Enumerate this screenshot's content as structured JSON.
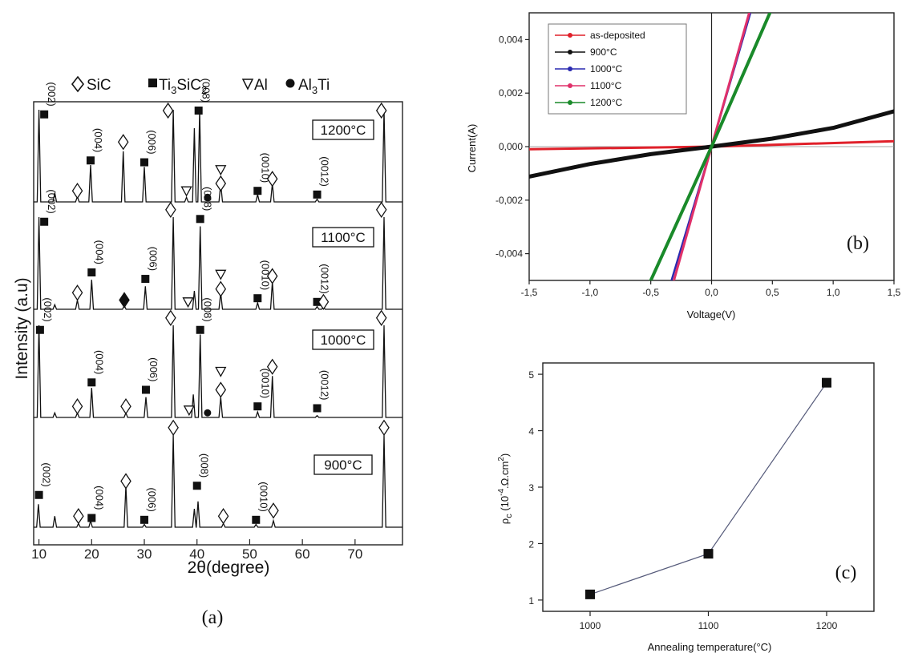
{
  "chart_data": [
    {
      "panel": "(a)",
      "type": "line",
      "xlabel": "2θ(degree)",
      "ylabel": "Intensity (a.u)",
      "xlim": [
        9,
        79
      ],
      "x_ticks": [
        10,
        20,
        30,
        40,
        50,
        60,
        70
      ],
      "legend": [
        {
          "symbol": "diamond-open",
          "label": "SiC"
        },
        {
          "symbol": "square-filled",
          "label": "Ti3SiC2"
        },
        {
          "symbol": "triangle-down-open",
          "label": "Al"
        },
        {
          "symbol": "circle-filled",
          "label": "Al3Ti"
        }
      ],
      "series": [
        {
          "name": "900°C",
          "peaks": [
            [
              9.9,
              0.25
            ],
            [
              13,
              0.12
            ],
            [
              17.5,
              0.04
            ],
            [
              19.8,
              0.07
            ],
            [
              26.5,
              0.45
            ],
            [
              30,
              0.03
            ],
            [
              35.5,
              1.0
            ],
            [
              39.5,
              0.2
            ],
            [
              40.2,
              0.28
            ],
            [
              45,
              0.04
            ],
            [
              51.2,
              0.03
            ],
            [
              54.5,
              0.07
            ],
            [
              75.5,
              1.0
            ]
          ],
          "markers": [
            {
              "x": 10,
              "sym": "square",
              "h": 0.35,
              "label": "(002)"
            },
            {
              "x": 17.5,
              "sym": "diamond",
              "h": 0.12
            },
            {
              "x": 20,
              "sym": "square",
              "h": 0.1,
              "label": "(004)"
            },
            {
              "x": 26.5,
              "sym": "diamond",
              "h": 0.5
            },
            {
              "x": 30,
              "sym": "square",
              "h": 0.08,
              "label": "(006)"
            },
            {
              "x": 35.5,
              "sym": "diamond",
              "h": 1.08
            },
            {
              "x": 40,
              "sym": "square",
              "h": 0.45,
              "label": "(008)"
            },
            {
              "x": 45,
              "sym": "diamond",
              "h": 0.12
            },
            {
              "x": 51.2,
              "sym": "square",
              "h": 0.08,
              "label": "(0010)"
            },
            {
              "x": 54.5,
              "sym": "diamond",
              "h": 0.18
            },
            {
              "x": 75.5,
              "sym": "diamond",
              "h": 1.08
            }
          ]
        },
        {
          "name": "1000°C",
          "peaks": [
            [
              10,
              1.0
            ],
            [
              13,
              0.05
            ],
            [
              17.3,
              0.05
            ],
            [
              20,
              0.32
            ],
            [
              26.5,
              0.05
            ],
            [
              30.3,
              0.22
            ],
            [
              35.5,
              1.0
            ],
            [
              39.3,
              0.25
            ],
            [
              40.6,
              0.9
            ],
            [
              44.5,
              0.22
            ],
            [
              51.5,
              0.06
            ],
            [
              54.3,
              0.45
            ],
            [
              62.8,
              0.02
            ],
            [
              75.5,
              1.0
            ]
          ],
          "markers": [
            {
              "x": 10.2,
              "sym": "square",
              "h": 0.95,
              "label": "(002)"
            },
            {
              "x": 17.3,
              "sym": "diamond",
              "h": 0.12
            },
            {
              "x": 20,
              "sym": "square",
              "h": 0.38,
              "label": "(004)"
            },
            {
              "x": 26.5,
              "sym": "diamond",
              "h": 0.12
            },
            {
              "x": 30.3,
              "sym": "square",
              "h": 0.3,
              "label": "(006)"
            },
            {
              "x": 35,
              "sym": "diamond",
              "h": 1.08
            },
            {
              "x": 38.5,
              "sym": "triangle",
              "h": 0.08
            },
            {
              "x": 40.6,
              "sym": "square",
              "h": 0.95,
              "label": "(008)"
            },
            {
              "x": 42,
              "sym": "circle",
              "h": 0.05
            },
            {
              "x": 44.5,
              "sym": "triangle",
              "h": 0.5
            },
            {
              "x": 44.5,
              "sym": "diamond",
              "h": 0.3
            },
            {
              "x": 51.5,
              "sym": "square",
              "h": 0.12,
              "label": "(0010)"
            },
            {
              "x": 54.3,
              "sym": "diamond",
              "h": 0.55
            },
            {
              "x": 62.8,
              "sym": "square",
              "h": 0.1,
              "label": "(0012)"
            },
            {
              "x": 75,
              "sym": "diamond",
              "h": 1.08
            }
          ]
        },
        {
          "name": "1100°C",
          "peaks": [
            [
              10,
              1.0
            ],
            [
              13,
              0.05
            ],
            [
              17.3,
              0.1
            ],
            [
              20,
              0.32
            ],
            [
              26.2,
              0.04
            ],
            [
              30.2,
              0.25
            ],
            [
              35.5,
              1.0
            ],
            [
              39.5,
              0.2
            ],
            [
              40.6,
              0.9
            ],
            [
              44.5,
              0.18
            ],
            [
              51.5,
              0.07
            ],
            [
              54.3,
              0.3
            ],
            [
              62.8,
              0.03
            ],
            [
              64,
              0.02
            ],
            [
              75.5,
              1.0
            ]
          ],
          "markers": [
            {
              "x": 11,
              "sym": "square",
              "h": 0.95,
              "label": "(002)"
            },
            {
              "x": 17.3,
              "sym": "diamond",
              "h": 0.18
            },
            {
              "x": 20,
              "sym": "square",
              "h": 0.4,
              "label": "(004)"
            },
            {
              "x": 26.2,
              "sym": "diamond-filled",
              "h": 0.1
            },
            {
              "x": 30.2,
              "sym": "square",
              "h": 0.33,
              "label": "(006)"
            },
            {
              "x": 35,
              "sym": "diamond",
              "h": 1.08
            },
            {
              "x": 38.3,
              "sym": "triangle",
              "h": 0.08
            },
            {
              "x": 40.6,
              "sym": "square",
              "h": 0.98,
              "label": "(008)"
            },
            {
              "x": 44.5,
              "sym": "triangle",
              "h": 0.38
            },
            {
              "x": 44.5,
              "sym": "diamond",
              "h": 0.22
            },
            {
              "x": 51.5,
              "sym": "square",
              "h": 0.12,
              "label": "(0010)"
            },
            {
              "x": 54.3,
              "sym": "diamond",
              "h": 0.36
            },
            {
              "x": 62.8,
              "sym": "square",
              "h": 0.08,
              "label": "(0012)"
            },
            {
              "x": 64,
              "sym": "diamond",
              "h": 0.08
            },
            {
              "x": 75,
              "sym": "diamond",
              "h": 1.08
            }
          ]
        },
        {
          "name": "1200°C",
          "peaks": [
            [
              10,
              1.0
            ],
            [
              13,
              0.1
            ],
            [
              17.3,
              0.06
            ],
            [
              19.8,
              0.4
            ],
            [
              26,
              0.55
            ],
            [
              30,
              0.38
            ],
            [
              35.5,
              1.0
            ],
            [
              38,
              0.05
            ],
            [
              39.5,
              0.8
            ],
            [
              40.5,
              1.0
            ],
            [
              44.5,
              0.2
            ],
            [
              51.5,
              0.08
            ],
            [
              54.3,
              0.2
            ],
            [
              62.8,
              0.03
            ],
            [
              75.5,
              1.0
            ]
          ],
          "markers": [
            {
              "x": 11,
              "sym": "square",
              "h": 0.95,
              "label": "(002)"
            },
            {
              "x": 17.3,
              "sym": "diamond",
              "h": 0.12
            },
            {
              "x": 19.8,
              "sym": "square",
              "h": 0.45,
              "label": "(004)"
            },
            {
              "x": 26,
              "sym": "diamond",
              "h": 0.65
            },
            {
              "x": 30,
              "sym": "square",
              "h": 0.43,
              "label": "(006)"
            },
            {
              "x": 34.5,
              "sym": "diamond",
              "h": 1.08
            },
            {
              "x": 38,
              "sym": "triangle",
              "h": 0.12
            },
            {
              "x": 40.3,
              "sym": "square",
              "h": 1.0,
              "label": "(008)"
            },
            {
              "x": 42,
              "sym": "circle",
              "h": 0.05
            },
            {
              "x": 44.5,
              "sym": "triangle",
              "h": 0.35
            },
            {
              "x": 44.5,
              "sym": "diamond",
              "h": 0.2
            },
            {
              "x": 51.5,
              "sym": "square",
              "h": 0.12,
              "label": "(0010)"
            },
            {
              "x": 54.3,
              "sym": "diamond",
              "h": 0.25
            },
            {
              "x": 62.8,
              "sym": "square",
              "h": 0.08,
              "label": "(0012)"
            },
            {
              "x": 75,
              "sym": "diamond",
              "h": 1.08
            }
          ]
        }
      ]
    },
    {
      "panel": "(b)",
      "type": "line",
      "xlabel": "Voltage(V)",
      "ylabel": "Current(A)",
      "xlim": [
        -1.5,
        1.5
      ],
      "ylim": [
        -0.005,
        0.005
      ],
      "x_ticks": [
        "-1,5",
        "-1,0",
        "-0,5",
        "0,0",
        "0,5",
        "1,0",
        "1,5"
      ],
      "y_ticks": [
        "-0,004",
        "-0,002",
        "0,000",
        "0,002",
        "0,004"
      ],
      "legend_position": "top-left",
      "series": [
        {
          "name": "as-deposited",
          "color": "#e0202a",
          "x": [
            -1.5,
            0,
            1.5
          ],
          "y": [
            -0.0001,
            0,
            0.0002
          ]
        },
        {
          "name": "900°C",
          "color": "#111111",
          "x": [
            -1.5,
            -1,
            -0.5,
            0,
            0.5,
            1,
            1.5
          ],
          "y": [
            -0.00112,
            -0.00065,
            -0.00028,
            0,
            0.0003,
            0.0007,
            0.00132
          ]
        },
        {
          "name": "1000°C",
          "color": "#2a2ab0",
          "x": [
            -0.33,
            0,
            0.32
          ],
          "y": [
            -0.005,
            0,
            0.005
          ]
        },
        {
          "name": "1100°C",
          "color": "#e0306a",
          "x": [
            -0.31,
            0,
            0.31
          ],
          "y": [
            -0.005,
            0,
            0.005
          ]
        },
        {
          "name": "1200°C",
          "color": "#1a8a2a",
          "x": [
            -0.5,
            0,
            0.48
          ],
          "y": [
            -0.005,
            0,
            0.005
          ]
        }
      ]
    },
    {
      "panel": "(c)",
      "type": "line",
      "xlabel": "Annealing temperature(°C)",
      "ylabel": "ρc (10⁻⁴.Ω.cm²)",
      "xlim": [
        960,
        1240
      ],
      "ylim": [
        0.8,
        5.2
      ],
      "x_ticks": [
        1000,
        1100,
        1200
      ],
      "y_ticks": [
        1,
        2,
        3,
        4,
        5
      ],
      "series": [
        {
          "name": "",
          "x": [
            1000,
            1100,
            1200
          ],
          "y": [
            1.1,
            1.82,
            4.85
          ]
        }
      ]
    }
  ],
  "labels": {
    "panel_a": "(a)",
    "panel_b": "(b)",
    "panel_c": "(c)",
    "legend_a": {
      "sic": "SiC",
      "ti": "Ti",
      "ti_sub3": "3",
      "si": "SiC",
      "si_sub2": "2",
      "al": "Al",
      "al3ti_a": "Al",
      "al3ti_sub": "3",
      "al3ti_b": "Ti"
    },
    "xlabel_a": "2θ(degree)",
    "ylabel_a": "Intensity (a.u)",
    "xlabel_b": "Voltage(V)",
    "ylabel_b": "Current(A)",
    "xlabel_c": "Annealing temperature(°C)",
    "ylabel_c_rho": "ρ",
    "ylabel_c_sub": "c",
    "ylabel_c_unit_a": " (10",
    "ylabel_c_exp": "-4",
    "ylabel_c_unit_b": ".Ω.cm",
    "ylabel_c_exp2": "2",
    "ylabel_c_unit_c": ")"
  }
}
